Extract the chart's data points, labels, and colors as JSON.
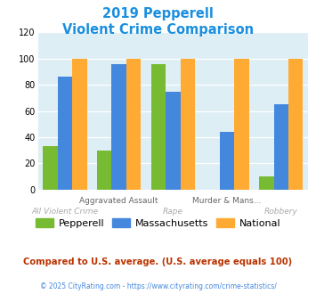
{
  "title_line1": "2019 Pepperell",
  "title_line2": "Violent Crime Comparison",
  "title_color": "#1a8fdf",
  "categories": [
    "All Violent Crime",
    "Aggravated Assault",
    "Rape",
    "Murder & Mans...",
    "Robbery"
  ],
  "pepperell": [
    33,
    30,
    96,
    0,
    10
  ],
  "massachusetts": [
    86,
    96,
    75,
    44,
    65
  ],
  "national": [
    100,
    100,
    100,
    100,
    100
  ],
  "pepperell_color": "#77bb33",
  "massachusetts_color": "#4488dd",
  "national_color": "#ffaa33",
  "ylim": [
    0,
    120
  ],
  "yticks": [
    0,
    20,
    40,
    60,
    80,
    100,
    120
  ],
  "plot_bg": "#ddeef5",
  "note": "Compared to U.S. average. (U.S. average equals 100)",
  "note_color": "#bb3300",
  "footer": "© 2025 CityRating.com - https://www.cityrating.com/crime-statistics/",
  "footer_color": "#4488dd"
}
